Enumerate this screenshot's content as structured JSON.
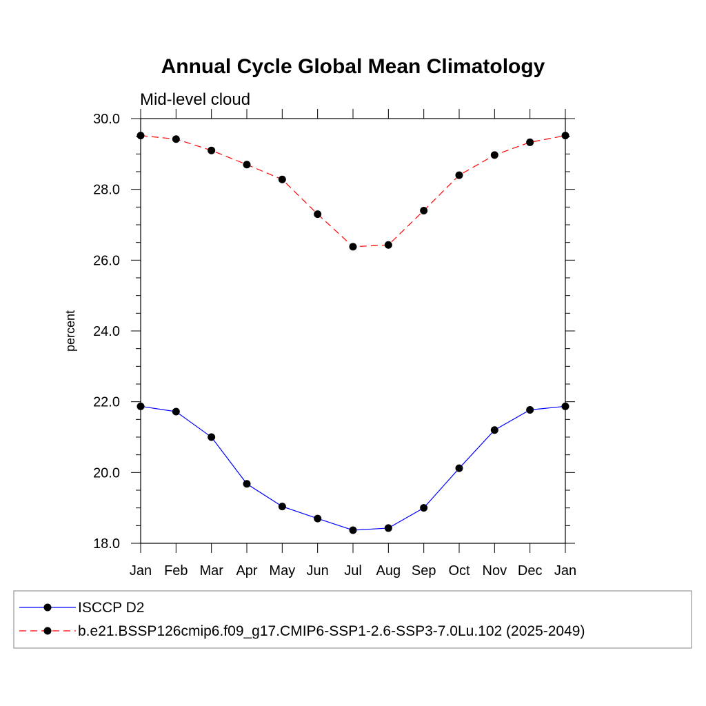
{
  "chart_data": {
    "type": "line",
    "title": "Annual Cycle Global Mean Climatology",
    "subtitle": "Mid-level cloud",
    "xlabel": "",
    "ylabel": "percent",
    "ylim": [
      18.0,
      30.0
    ],
    "yticks": [
      "18.0",
      "20.0",
      "22.0",
      "24.0",
      "26.0",
      "28.0",
      "30.0"
    ],
    "categories": [
      "Jan",
      "Feb",
      "Mar",
      "Apr",
      "May",
      "Jun",
      "Jul",
      "Aug",
      "Sep",
      "Oct",
      "Nov",
      "Dec",
      "Jan"
    ],
    "grid": false,
    "legend_position": "bottom",
    "series": [
      {
        "name": "ISCCP D2",
        "color": "#0000ff",
        "line_style": "solid",
        "values": [
          21.87,
          21.72,
          21.0,
          19.68,
          19.04,
          18.7,
          18.37,
          18.43,
          19.0,
          20.12,
          21.2,
          21.77,
          21.87
        ]
      },
      {
        "name": "b.e21.BSSP126cmip6.f09_g17.CMIP6-SSP1-2.6-SSP3-7.0Lu.102 (2025-2049)",
        "color": "#ff0000",
        "line_style": "dashed",
        "values": [
          29.52,
          29.42,
          29.1,
          28.7,
          28.28,
          27.3,
          26.38,
          26.43,
          27.4,
          28.4,
          28.97,
          29.33,
          29.52
        ]
      }
    ]
  }
}
